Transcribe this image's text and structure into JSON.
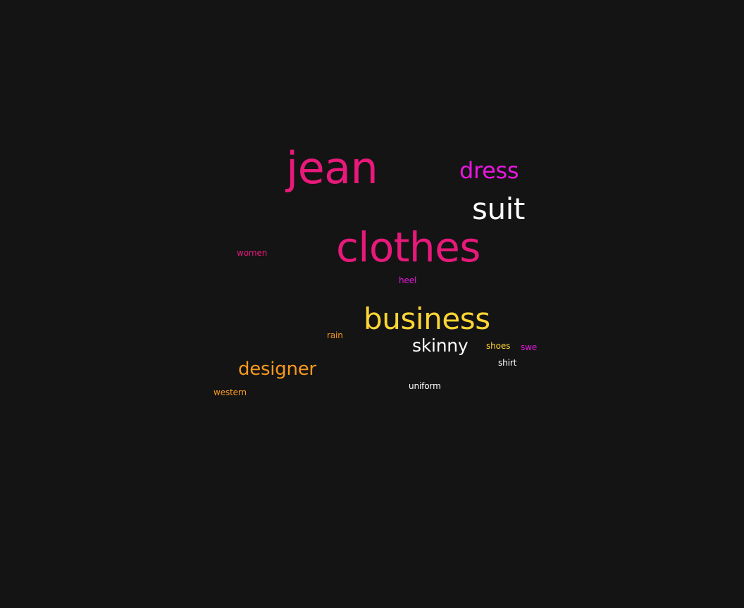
{
  "palette": {
    "background": "#141414",
    "pink": "#e8197a",
    "magenta": "#e817e0",
    "white": "#ffffff",
    "yellow": "#fdd535",
    "orange": "#f79a1e"
  },
  "words": [
    {
      "text": "jean",
      "color": "#e8197a"
    },
    {
      "text": "dress",
      "color": "#e817e0"
    },
    {
      "text": "suit",
      "color": "#ffffff"
    },
    {
      "text": "clothes",
      "color": "#e8197a"
    },
    {
      "text": "women",
      "color": "#e8197a"
    },
    {
      "text": "heel",
      "color": "#e817e0"
    },
    {
      "text": "business",
      "color": "#fdd535"
    },
    {
      "text": "rain",
      "color": "#f79a1e"
    },
    {
      "text": "skinny",
      "color": "#ffffff"
    },
    {
      "text": "shoes",
      "color": "#fdd535"
    },
    {
      "text": "swe",
      "color": "#e817e0"
    },
    {
      "text": "shirt",
      "color": "#ffffff"
    },
    {
      "text": "designer",
      "color": "#f79a1e"
    },
    {
      "text": "uniform",
      "color": "#ffffff"
    },
    {
      "text": "western",
      "color": "#f79a1e"
    }
  ]
}
